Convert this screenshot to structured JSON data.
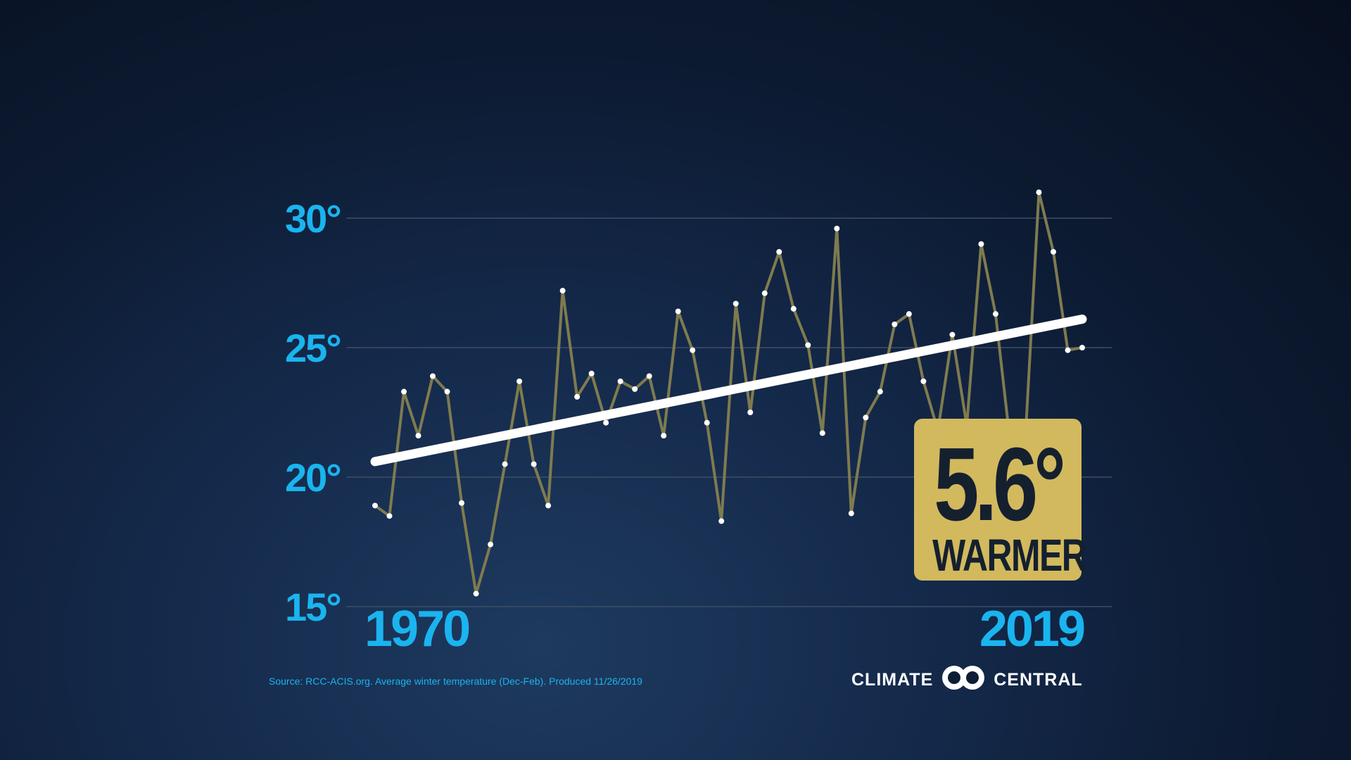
{
  "chart_data": {
    "type": "line",
    "title": "",
    "xlabel": "",
    "ylabel": "",
    "ylim": [
      15,
      30
    ],
    "xlim": [
      1970,
      2019
    ],
    "y_tick_labels": [
      "30°",
      "25°",
      "20°",
      "15°"
    ],
    "y_tick_values": [
      30,
      25,
      20,
      15
    ],
    "x_tick_labels": [
      "1970",
      "2019"
    ],
    "x_tick_values": [
      1970,
      2019
    ],
    "grid": true,
    "legend": "none",
    "series": [
      {
        "x": [
          1970,
          1971,
          1972,
          1973,
          1974,
          1975,
          1976,
          1977,
          1978,
          1979,
          1980,
          1981,
          1982,
          1983,
          1984,
          1985,
          1986,
          1987,
          1988,
          1989,
          1990,
          1991,
          1992,
          1993,
          1994,
          1995,
          1996,
          1997,
          1998,
          1999,
          2000,
          2001,
          2002,
          2003,
          2004,
          2005,
          2006,
          2007,
          2008,
          2009,
          2010,
          2011,
          2012,
          2013,
          2014,
          2015,
          2016,
          2017,
          2018,
          2019
        ],
        "values": [
          18.9,
          18.5,
          23.3,
          21.6,
          23.9,
          23.3,
          19.0,
          15.5,
          17.4,
          20.5,
          23.7,
          20.5,
          18.9,
          27.2,
          23.1,
          24.0,
          22.1,
          23.7,
          23.4,
          23.9,
          21.6,
          26.4,
          24.9,
          22.1,
          18.3,
          26.7,
          22.5,
          27.1,
          28.7,
          26.5,
          25.1,
          21.7,
          29.6,
          18.6,
          22.3,
          23.3,
          25.9,
          26.3,
          23.7,
          21.8,
          25.5,
          22.0,
          29.0,
          26.3,
          21.4,
          20.9,
          31.0,
          28.7,
          24.9,
          25.0
        ]
      },
      {
        "x": [
          1970,
          2019
        ],
        "values": [
          20.6,
          26.1
        ]
      }
    ],
    "colors": {
      "data_line": "#7f7b4f",
      "point": "#ffffff",
      "trend_line": "#ffffff",
      "grid": "#3e4e66",
      "tick_text": "#1ab4ef"
    }
  },
  "badge": {
    "value": "5.6°",
    "label": "WARMER",
    "color": "#d2b95e"
  },
  "source_text": "Source: RCC-ACIS.org. Average winter temperature (Dec-Feb). Produced 11/26/2019",
  "brand": {
    "left": "CLIMATE",
    "right": "CENTRAL",
    "logo_icon": "double-circle-logo-icon"
  }
}
